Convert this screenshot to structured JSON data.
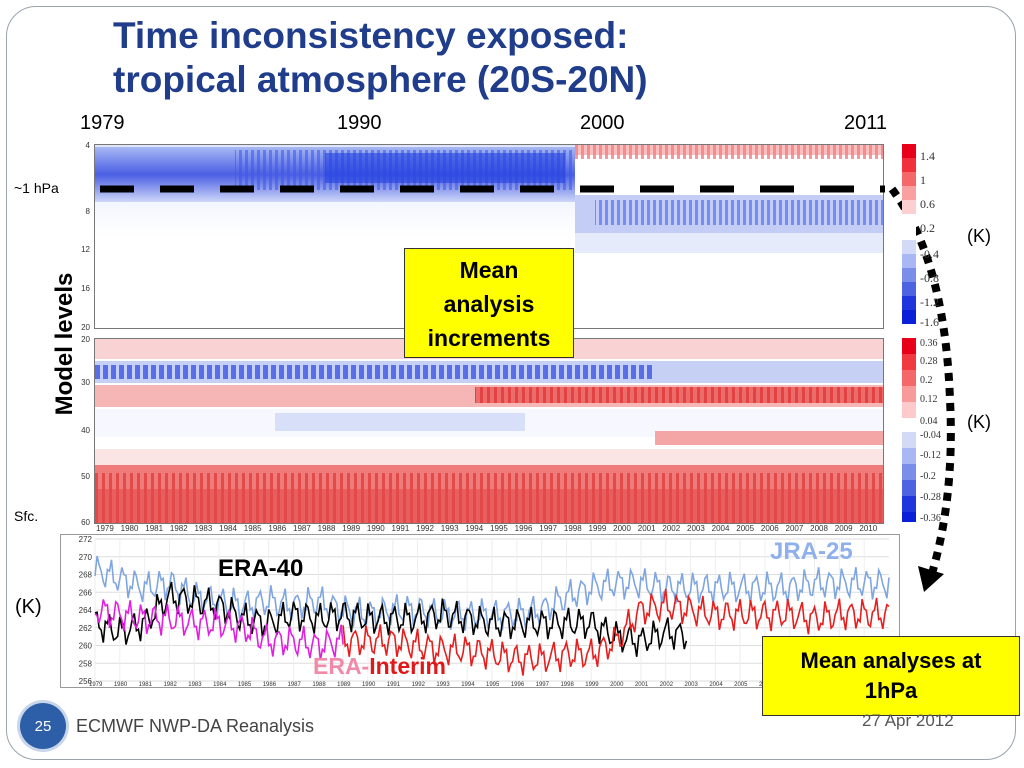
{
  "slide": {
    "title_line1": "Time inconsistency exposed:",
    "title_line2": "tropical atmosphere (20S-20N)",
    "years_top": [
      "1979",
      "1990",
      "2000",
      "2011"
    ],
    "level_label": "~1 hPa",
    "sfc_label": "Sfc.",
    "y_axis_label": "Model levels",
    "unit": "(K)",
    "box_increments": [
      "Mean",
      "analysis",
      "increments"
    ],
    "box_analyses": [
      "Mean analyses at",
      "1hPa"
    ],
    "page_number": "25",
    "footer_left": "ECMWF NWP-DA Reanalysis",
    "footer_right": "27 Apr 2012"
  },
  "colorbar_top": [
    "1.4",
    "1",
    "0.6",
    "0.2",
    "-0.4",
    "-0.8",
    "-1.2",
    "-1.6"
  ],
  "colorbar_bottom": [
    "0.36",
    "0.28",
    "0.2",
    "0.12",
    "0.04",
    "-0.04",
    "-0.12",
    "-0.2",
    "-0.28",
    "-0.36"
  ],
  "heatmap_top": {
    "y_ticks": [
      "4",
      "8",
      "12",
      "16",
      "20"
    ]
  },
  "heatmap_bottom": {
    "y_ticks": [
      "20",
      "30",
      "40",
      "50",
      "60"
    ]
  },
  "x_year_ticks": [
    "1979",
    "1980",
    "1981",
    "1982",
    "1983",
    "1984",
    "1985",
    "1986",
    "1987",
    "1988",
    "1989",
    "1990",
    "1991",
    "1992",
    "1993",
    "1994",
    "1995",
    "1996",
    "1997",
    "1998",
    "1999",
    "2000",
    "2001",
    "2002",
    "2003",
    "2004",
    "2005",
    "2006",
    "2007",
    "2008",
    "2009",
    "2010"
  ],
  "chart_data": {
    "type": "line",
    "ylim": [
      256,
      272
    ],
    "y_ticks": [
      "256",
      "258",
      "260",
      "262",
      "264",
      "266",
      "268",
      "270",
      "272"
    ],
    "x_range": [
      1979,
      2011
    ],
    "series": [
      {
        "name": "JRA-25",
        "color": "#7fa6e0",
        "start": 1979,
        "end": 2011,
        "base": [
          268.5,
          267.5,
          266.5,
          267,
          265.5,
          265,
          264.5,
          265,
          264.5,
          265,
          264,
          263.5,
          264,
          264,
          263.5,
          263.5,
          263.5,
          263.5,
          264,
          265.5,
          266.5,
          267,
          267,
          266.5,
          266.5,
          266.5,
          266.5,
          266.5,
          266.5,
          267,
          267,
          267,
          267
        ]
      },
      {
        "name": "ERA-40",
        "color": "#000000",
        "start": 1979,
        "end": 2002.8,
        "base": [
          262.5,
          261.5,
          262.5,
          265.5,
          265,
          264.5,
          263,
          262.5,
          263.5,
          263,
          263.5,
          263,
          263,
          263,
          263.5,
          263,
          262.5,
          262.5,
          262.5,
          262.5,
          262.5,
          261,
          260.5,
          261.5,
          261
        ]
      },
      {
        "name": "ERA-Interim",
        "color": "#e61e1e",
        "start": 1989,
        "end": 2011,
        "base": [
          260.5,
          260.5,
          260.5,
          260,
          259.5,
          259.5,
          259,
          258.5,
          258.5,
          259,
          259,
          260.5,
          264,
          264.5,
          264,
          263.5,
          263.5,
          263.5,
          263.5,
          263,
          263.5,
          263.5,
          263.5
        ]
      },
      {
        "name": "magenta",
        "color": "#e020e0",
        "start": 1979,
        "end": 1989,
        "base": [
          264,
          263.5,
          263,
          263,
          262.5,
          262.5,
          262,
          260.5,
          260.5,
          260,
          260.5
        ]
      }
    ],
    "series_labels": {
      "jra": "JRA-25",
      "era40": "ERA-40",
      "erai_prefix": "ERA-",
      "erai_suffix": "Interim"
    }
  }
}
